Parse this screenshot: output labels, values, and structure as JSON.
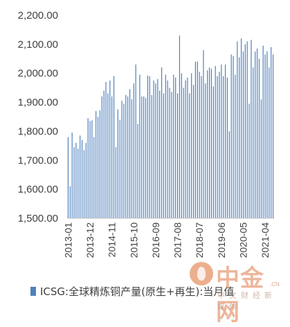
{
  "chart_data": {
    "type": "bar",
    "title": "",
    "xlabel": "",
    "ylabel": "",
    "ylim": [
      1500,
      2200
    ],
    "y_ticks": [
      "1,500.00",
      "1,600.00",
      "1,700.00",
      "1,800.00",
      "1,900.00",
      "2,000.00",
      "2,100.00",
      "2,200.00"
    ],
    "x_tick_labels": [
      "2013-01",
      "2013-12",
      "2014-11",
      "2015-10",
      "2016-09",
      "2017-08",
      "2018-07",
      "2019-06",
      "2020-05",
      "2021-04"
    ],
    "grid": false,
    "legend_position": "bottom-left",
    "series": [
      {
        "name": "ICSG:全球精炼铜产量(原生+再生):当月值",
        "color": "#4f81bd",
        "x": [
          "2013-01",
          "2013-02",
          "2013-03",
          "2013-04",
          "2013-05",
          "2013-06",
          "2013-07",
          "2013-08",
          "2013-09",
          "2013-10",
          "2013-11",
          "2013-12",
          "2014-01",
          "2014-02",
          "2014-03",
          "2014-04",
          "2014-05",
          "2014-06",
          "2014-07",
          "2014-08",
          "2014-09",
          "2014-10",
          "2014-11",
          "2014-12",
          "2015-01",
          "2015-02",
          "2015-03",
          "2015-04",
          "2015-05",
          "2015-06",
          "2015-07",
          "2015-08",
          "2015-09",
          "2015-10",
          "2015-11",
          "2015-12",
          "2016-01",
          "2016-02",
          "2016-03",
          "2016-04",
          "2016-05",
          "2016-06",
          "2016-07",
          "2016-08",
          "2016-09",
          "2016-10",
          "2016-11",
          "2016-12",
          "2017-01",
          "2017-02",
          "2017-03",
          "2017-04",
          "2017-05",
          "2017-06",
          "2017-07",
          "2017-08",
          "2017-09",
          "2017-10",
          "2017-11",
          "2017-12",
          "2018-01",
          "2018-02",
          "2018-03",
          "2018-04",
          "2018-05",
          "2018-06",
          "2018-07",
          "2018-08",
          "2018-09",
          "2018-10",
          "2018-11",
          "2018-12",
          "2019-01",
          "2019-02",
          "2019-03",
          "2019-04",
          "2019-05",
          "2019-06",
          "2019-07",
          "2019-08",
          "2019-09",
          "2019-10",
          "2019-11",
          "2019-12",
          "2020-01",
          "2020-02",
          "2020-03",
          "2020-04",
          "2020-05",
          "2020-06",
          "2020-07",
          "2020-08",
          "2020-09",
          "2020-10",
          "2020-11",
          "2020-12",
          "2021-01",
          "2021-02",
          "2021-03",
          "2021-04",
          "2021-05",
          "2021-06",
          "2021-07",
          "2021-08"
        ],
        "values": [
          1780,
          1610,
          1795,
          1745,
          1760,
          1740,
          1785,
          1770,
          1735,
          1760,
          1845,
          1835,
          1838,
          1780,
          1870,
          1850,
          1872,
          1920,
          1940,
          1970,
          1930,
          1975,
          1920,
          1990,
          1745,
          1875,
          1840,
          1905,
          1895,
          1925,
          1920,
          1945,
          1910,
          1965,
          2030,
          1825,
          1995,
          1920,
          1920,
          1915,
          1992,
          1990,
          1925,
          1975,
          1965,
          1980,
          1940,
          2020,
          1930,
          1995,
          1975,
          1950,
          1935,
          1995,
          1985,
          1930,
          2130,
          2000,
          1950,
          1975,
          1985,
          1930,
          2000,
          1960,
          2040,
          2040,
          2005,
          1990,
          2080,
          1965,
          2010,
          2020,
          2015,
          1955,
          2025,
          1990,
          2005,
          2030,
          1990,
          2030,
          1985,
          1800,
          2065,
          2060,
          1995,
          2110,
          2055,
          2120,
          2075,
          2100,
          2110,
          1895,
          2115,
          2020,
          2075,
          2085,
          2050,
          1910,
          2095,
          2065,
          2075,
          2020,
          2090,
          2065
        ]
      }
    ]
  }
}
